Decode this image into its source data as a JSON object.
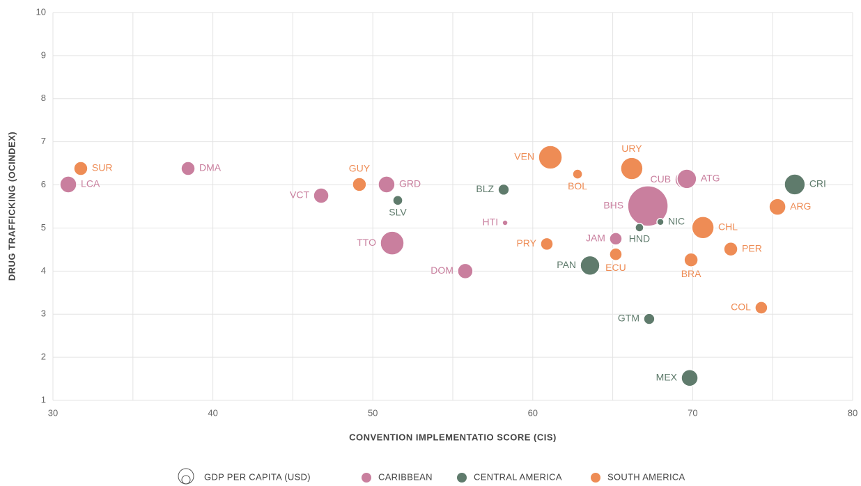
{
  "chart_data": {
    "type": "scatter",
    "xlabel": "CONVENTION IMPLEMENTATIO SCORE (CIS)",
    "ylabel": "DRUG TRAFFICKING (OCINDEX)",
    "size_label": "GDP PER CAPITA (USD)",
    "xlim": [
      30,
      80
    ],
    "xticks": [
      30,
      40,
      50,
      60,
      70,
      80
    ],
    "xgrid": [
      30,
      35,
      40,
      45,
      50,
      55,
      60,
      65,
      70,
      75,
      80
    ],
    "ylim": [
      1,
      10
    ],
    "yticks": [
      1,
      2,
      3,
      4,
      5,
      6,
      7,
      8,
      9,
      10
    ],
    "grid": true,
    "legend": "bottom",
    "series": [
      {
        "name": "CARIBBEAN",
        "color": "#c97f9e",
        "labels": [
          "LCA",
          "DMA",
          "VCT",
          "GRD",
          "TTO",
          "DOM",
          "HTI",
          "JAM",
          "BHS",
          "CUB",
          "ATG"
        ],
        "x": [
          30.96,
          38.45,
          46.77,
          50.86,
          51.21,
          55.78,
          58.27,
          65.19,
          67.2,
          69.42,
          69.63
        ],
        "values": [
          6.01,
          6.38,
          5.75,
          6.01,
          4.65,
          4.0,
          5.12,
          4.75,
          5.51,
          6.12,
          6.14
        ],
        "sizes": [
          5500,
          3800,
          4600,
          5500,
          11000,
          4600,
          600,
          3100,
          32000,
          5500,
          7400
        ]
      },
      {
        "name": "CENTRAL AMERICA",
        "color": "#5f7b6c",
        "labels": [
          "BLZ",
          "SLV",
          "NIC",
          "HND",
          "PAN",
          "GTM",
          "MEX",
          "CRI"
        ],
        "x": [
          58.18,
          51.56,
          67.98,
          66.67,
          63.58,
          67.28,
          69.81,
          76.38
        ],
        "values": [
          5.89,
          5.64,
          5.14,
          5.01,
          4.13,
          2.89,
          1.52,
          6.01
        ],
        "sizes": [
          2400,
          1900,
          950,
          1400,
          7400,
          2400,
          5500,
          8500
        ]
      },
      {
        "name": "SOUTH AMERICA",
        "color": "#ee8c55",
        "labels": [
          "SUR",
          "GUY",
          "VEN",
          "BOL",
          "URY",
          "CHL",
          "ARG",
          "PRY",
          "ECU",
          "PER",
          "BRA",
          "COL"
        ],
        "x": [
          31.74,
          49.16,
          61.1,
          62.8,
          66.19,
          70.64,
          75.3,
          60.88,
          65.19,
          72.38,
          69.9,
          74.29
        ],
        "values": [
          6.38,
          6.01,
          6.64,
          6.25,
          6.38,
          5.01,
          5.49,
          4.63,
          4.39,
          4.51,
          4.26,
          3.15
        ],
        "sizes": [
          3800,
          3800,
          11000,
          1900,
          9700,
          9700,
          5500,
          3100,
          3100,
          3800,
          3800,
          3100
        ]
      }
    ]
  }
}
